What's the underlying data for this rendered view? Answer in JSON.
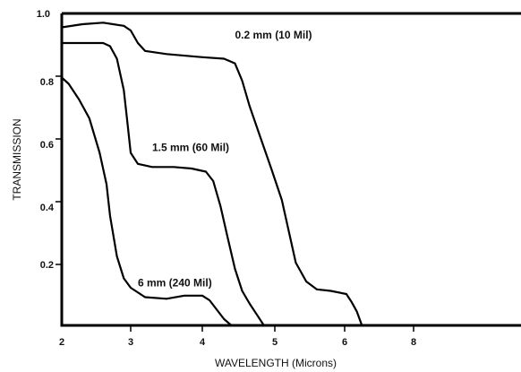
{
  "chart_data": {
    "type": "line",
    "title": "",
    "xlabel": "WAVELENGTH (Microns)",
    "ylabel": "TRANSMISSION",
    "x_ticks": [
      "2",
      "3",
      "4",
      "5",
      "6",
      "8"
    ],
    "y_ticks": [
      "1.0",
      "0.8",
      "0.6",
      "0.4",
      "0.2"
    ],
    "ylim": [
      0,
      1.0
    ],
    "grid": false,
    "legend": "none",
    "series": [
      {
        "name": "0.2 mm (10 Mil)",
        "points": [
          [
            2.0,
            0.95
          ],
          [
            2.3,
            0.96
          ],
          [
            2.6,
            0.965
          ],
          [
            2.9,
            0.955
          ],
          [
            3.0,
            0.94
          ],
          [
            3.1,
            0.9
          ],
          [
            3.2,
            0.875
          ],
          [
            3.5,
            0.865
          ],
          [
            4.0,
            0.855
          ],
          [
            4.3,
            0.85
          ],
          [
            4.45,
            0.835
          ],
          [
            4.55,
            0.78
          ],
          [
            4.65,
            0.7
          ],
          [
            4.8,
            0.6
          ],
          [
            4.95,
            0.5
          ],
          [
            5.1,
            0.4
          ],
          [
            5.2,
            0.3
          ],
          [
            5.3,
            0.2
          ],
          [
            5.45,
            0.14
          ],
          [
            5.6,
            0.115
          ],
          [
            5.8,
            0.11
          ],
          [
            6.05,
            0.1
          ],
          [
            6.2,
            0.075
          ],
          [
            6.35,
            0.045
          ],
          [
            6.5,
            0.0
          ]
        ]
      },
      {
        "name": "1.5 mm (60 Mil)",
        "points": [
          [
            2.0,
            0.9
          ],
          [
            2.3,
            0.9
          ],
          [
            2.6,
            0.9
          ],
          [
            2.7,
            0.89
          ],
          [
            2.8,
            0.85
          ],
          [
            2.9,
            0.75
          ],
          [
            2.95,
            0.65
          ],
          [
            3.0,
            0.55
          ],
          [
            3.1,
            0.515
          ],
          [
            3.3,
            0.505
          ],
          [
            3.6,
            0.505
          ],
          [
            3.85,
            0.5
          ],
          [
            4.05,
            0.49
          ],
          [
            4.15,
            0.46
          ],
          [
            4.25,
            0.38
          ],
          [
            4.35,
            0.28
          ],
          [
            4.45,
            0.18
          ],
          [
            4.55,
            0.11
          ],
          [
            4.65,
            0.07
          ],
          [
            4.75,
            0.035
          ],
          [
            4.85,
            0.0
          ]
        ]
      },
      {
        "name": "6 mm (240 Mil)",
        "points": [
          [
            2.0,
            0.79
          ],
          [
            2.1,
            0.77
          ],
          [
            2.25,
            0.72
          ],
          [
            2.4,
            0.66
          ],
          [
            2.55,
            0.55
          ],
          [
            2.65,
            0.45
          ],
          [
            2.7,
            0.35
          ],
          [
            2.8,
            0.22
          ],
          [
            2.9,
            0.15
          ],
          [
            3.0,
            0.12
          ],
          [
            3.2,
            0.09
          ],
          [
            3.5,
            0.085
          ],
          [
            3.75,
            0.095
          ],
          [
            4.0,
            0.095
          ],
          [
            4.1,
            0.08
          ],
          [
            4.2,
            0.05
          ],
          [
            4.3,
            0.02
          ],
          [
            4.4,
            0.0
          ]
        ]
      }
    ],
    "annotations": [
      {
        "text": "0.2 mm (10 Mil)",
        "x": 4.45,
        "y": 0.915
      },
      {
        "text": "1.5 mm (60 Mil)",
        "x": 3.3,
        "y": 0.555
      },
      {
        "text": "6 mm (240 Mil)",
        "x": 3.1,
        "y": 0.125
      }
    ]
  }
}
